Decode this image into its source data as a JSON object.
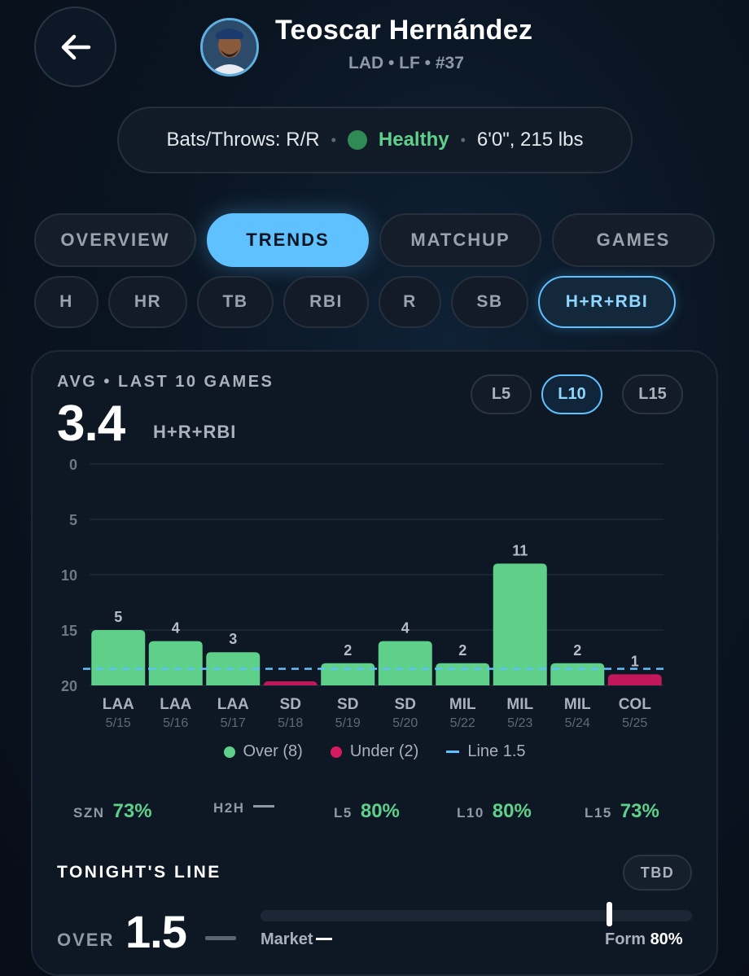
{
  "header": {
    "back_icon": "arrow-left-icon",
    "player_name": "Teoscar Hernández",
    "team": "LAD",
    "position": "LF",
    "number": "#37",
    "subtitle": "LAD • LF • #37",
    "avatar": "player-photo"
  },
  "info": {
    "bats_throws": "Bats/Throws: R/R",
    "status": "Healthy",
    "status_color": "#5fd08a",
    "size": "6'0\", 215 lbs"
  },
  "tabs": [
    {
      "label": "OVERVIEW",
      "active": false
    },
    {
      "label": "TRENDS",
      "active": true
    },
    {
      "label": "MATCHUP",
      "active": false
    },
    {
      "label": "GAMES",
      "active": false
    }
  ],
  "stat_filters": [
    {
      "label": "H",
      "active": false
    },
    {
      "label": "HR",
      "active": false
    },
    {
      "label": "TB",
      "active": false
    },
    {
      "label": "RBI",
      "active": false
    },
    {
      "label": "R",
      "active": false
    },
    {
      "label": "SB",
      "active": false
    },
    {
      "label": "H+R+RBI",
      "active": true
    }
  ],
  "summary": {
    "avg_label": "AVG • LAST 10 GAMES",
    "avg_value": "3.4",
    "avg_unit": "H+R+RBI"
  },
  "ranges": [
    {
      "label": "L5",
      "active": false
    },
    {
      "label": "L10",
      "active": true
    },
    {
      "label": "L15",
      "active": false
    }
  ],
  "chart_data": {
    "type": "bar",
    "y_tick_labels": [
      "0",
      "5",
      "10",
      "15",
      "20"
    ],
    "ylim": [
      0,
      20
    ],
    "line": 1.5,
    "categories": [
      "LAA",
      "LAA",
      "LAA",
      "SD",
      "SD",
      "SD",
      "MIL",
      "MIL",
      "MIL",
      "COL"
    ],
    "dates": [
      "5/15",
      "5/16",
      "5/17",
      "5/18",
      "5/19",
      "5/20",
      "5/22",
      "5/23",
      "5/24",
      "5/25"
    ],
    "values": [
      5,
      4,
      3,
      0,
      2,
      4,
      2,
      11,
      2,
      1
    ],
    "value_labels": [
      "5",
      "4",
      "3",
      "",
      "2",
      "4",
      "2",
      "11",
      "2",
      "1"
    ],
    "results": [
      "over",
      "over",
      "over",
      "under",
      "over",
      "over",
      "over",
      "over",
      "over",
      "under"
    ],
    "colors": {
      "over": "#5fd08a",
      "under": "#c2185b",
      "line": "#5fc1ff",
      "grid": "#1f2a38"
    }
  },
  "legend": {
    "over": "Over (8)",
    "under": "Under (2)",
    "line": "Line 1.5"
  },
  "hit_rates": [
    {
      "key": "SZN",
      "value": "73%"
    },
    {
      "key": "H2H",
      "value": ""
    },
    {
      "key": "L5",
      "value": "80%"
    },
    {
      "key": "L10",
      "value": "80%"
    },
    {
      "key": "L15",
      "value": "73%"
    }
  ],
  "tonight": {
    "title": "TONIGHT'S LINE",
    "badge": "TBD",
    "side": "OVER",
    "line": "1.5",
    "market_label": "Market",
    "form_label": "Form",
    "form_value": "80%",
    "form_fraction": 0.8
  }
}
